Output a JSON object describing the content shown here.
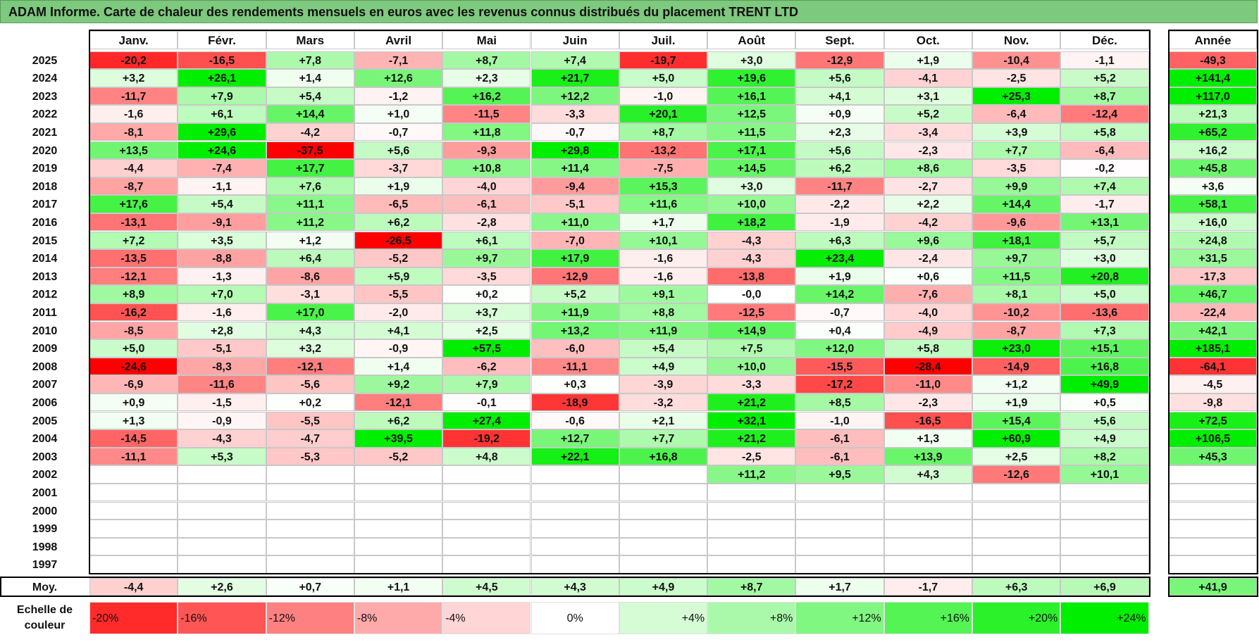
{
  "title": "ADAM Informe. Carte de chaleur des rendements mensuels en euros avec les revenus connus distribués du placement TRENT LTD",
  "chart_data": {
    "type": "heatmap",
    "months": [
      "Janv.",
      "Févr.",
      "Mars",
      "Avril",
      "Mai",
      "Juin",
      "Juil.",
      "Août",
      "Sept.",
      "Oct.",
      "Nov.",
      "Déc."
    ],
    "year_header": "Année",
    "rows": [
      {
        "year": "2025",
        "values": [
          "-20,2",
          "-16,5",
          "+7,8",
          "-7,1",
          "+8,7",
          "+7,4",
          "-19,7",
          "+3,0",
          "-12,9",
          "+1,9",
          "-10,4",
          "-1,1"
        ],
        "annual": "-49,3"
      },
      {
        "year": "2024",
        "values": [
          "+3,2",
          "+26,1",
          "+1,4",
          "+12,6",
          "+2,3",
          "+21,7",
          "+5,0",
          "+19,6",
          "+5,6",
          "-4,1",
          "-2,5",
          "+5,2"
        ],
        "annual": "+141,4"
      },
      {
        "year": "2023",
        "values": [
          "-11,7",
          "+7,9",
          "+5,4",
          "-1,2",
          "+16,2",
          "+12,2",
          "-1,0",
          "+16,1",
          "+4,1",
          "+3,1",
          "+25,3",
          "+8,7"
        ],
        "annual": "+117,0"
      },
      {
        "year": "2022",
        "values": [
          "-1,6",
          "+6,1",
          "+14,4",
          "+1,0",
          "-11,5",
          "-3,3",
          "+20,1",
          "+12,5",
          "+0,9",
          "+5,2",
          "-6,4",
          "-12,4"
        ],
        "annual": "+21,3"
      },
      {
        "year": "2021",
        "values": [
          "-8,1",
          "+29,6",
          "-4,2",
          "-0,7",
          "+11,8",
          "-0,7",
          "+8,7",
          "+11,5",
          "+2,3",
          "-3,4",
          "+3,9",
          "+5,8"
        ],
        "annual": "+65,2"
      },
      {
        "year": "2020",
        "values": [
          "+13,5",
          "+24,6",
          "-37,5",
          "+5,6",
          "-9,3",
          "+29,8",
          "-13,2",
          "+17,1",
          "+5,6",
          "-2,3",
          "+7,7",
          "-6,4"
        ],
        "annual": "+16,2"
      },
      {
        "year": "2019",
        "values": [
          "-4,4",
          "-7,4",
          "+17,7",
          "-3,7",
          "+10,8",
          "+11,4",
          "-7,5",
          "+14,5",
          "+6,2",
          "+8,6",
          "-3,5",
          "-0,2"
        ],
        "annual": "+45,8"
      },
      {
        "year": "2018",
        "values": [
          "-8,7",
          "-1,1",
          "+7,6",
          "+1,9",
          "-4,0",
          "-9,4",
          "+15,3",
          "+3,0",
          "-11,7",
          "-2,7",
          "+9,9",
          "+7,4"
        ],
        "annual": "+3,6"
      },
      {
        "year": "2017",
        "values": [
          "+17,6",
          "+5,4",
          "+11,1",
          "-6,5",
          "-6,1",
          "-5,1",
          "+11,6",
          "+10,0",
          "-2,2",
          "+2,2",
          "+14,4",
          "-1,7"
        ],
        "annual": "+58,1"
      },
      {
        "year": "2016",
        "values": [
          "-13,1",
          "-9,1",
          "+11,2",
          "+6,2",
          "-2,8",
          "+11,0",
          "+1,7",
          "+18,2",
          "-1,9",
          "-4,2",
          "-9,6",
          "+13,1"
        ],
        "annual": "+16,0"
      },
      {
        "year": "2015",
        "values": [
          "+7,2",
          "+3,5",
          "+1,2",
          "-26,5",
          "+6,1",
          "-7,0",
          "+10,1",
          "-4,3",
          "+6,3",
          "+9,6",
          "+18,1",
          "+5,7"
        ],
        "annual": "+24,8"
      },
      {
        "year": "2014",
        "values": [
          "-13,5",
          "-8,8",
          "+6,4",
          "-5,2",
          "+9,7",
          "+17,9",
          "-1,6",
          "-4,3",
          "+23,4",
          "-2,4",
          "+9,7",
          "+3,0"
        ],
        "annual": "+31,5"
      },
      {
        "year": "2013",
        "values": [
          "-12,1",
          "-1,3",
          "-8,6",
          "+5,9",
          "-3,5",
          "-12,9",
          "-1,6",
          "-13,8",
          "+1,9",
          "+0,6",
          "+11,5",
          "+20,8"
        ],
        "annual": "-17,3"
      },
      {
        "year": "2012",
        "values": [
          "+8,9",
          "+7,0",
          "-3,1",
          "-5,5",
          "+0,2",
          "+5,2",
          "+9,1",
          "-0,0",
          "+14,2",
          "-7,6",
          "+8,1",
          "+5,0"
        ],
        "annual": "+46,7"
      },
      {
        "year": "2011",
        "values": [
          "-16,2",
          "-1,6",
          "+17,0",
          "-2,0",
          "+3,7",
          "+11,9",
          "+8,8",
          "-12,5",
          "-0,7",
          "-4,0",
          "-10,2",
          "-13,6"
        ],
        "annual": "-22,4"
      },
      {
        "year": "2010",
        "values": [
          "-8,5",
          "+2,8",
          "+4,3",
          "+4,1",
          "+2,5",
          "+13,2",
          "+11,9",
          "+14,9",
          "+0,4",
          "-4,9",
          "-8,7",
          "+7,3"
        ],
        "annual": "+42,1"
      },
      {
        "year": "2009",
        "values": [
          "+5,0",
          "-5,1",
          "+3,2",
          "-0,9",
          "+57,5",
          "-6,0",
          "+5,4",
          "+7,5",
          "+12,0",
          "+5,8",
          "+23,0",
          "+15,1"
        ],
        "annual": "+185,1"
      },
      {
        "year": "2008",
        "values": [
          "-24,6",
          "-8,3",
          "-12,1",
          "+1,4",
          "-6,2",
          "-11,1",
          "+4,9",
          "+10,0",
          "-15,5",
          "-28,4",
          "-14,9",
          "+16,8"
        ],
        "annual": "-64,1"
      },
      {
        "year": "2007",
        "values": [
          "-6,9",
          "-11,6",
          "-5,6",
          "+9,2",
          "+7,9",
          "+0,3",
          "-3,9",
          "-3,3",
          "-17,2",
          "-11,0",
          "+1,2",
          "+49,9"
        ],
        "annual": "-4,5"
      },
      {
        "year": "2006",
        "values": [
          "+0,9",
          "-1,5",
          "+0,2",
          "-12,1",
          "-0,1",
          "-18,9",
          "-3,2",
          "+21,2",
          "+8,5",
          "-2,3",
          "+1,9",
          "+0,5"
        ],
        "annual": "-9,8"
      },
      {
        "year": "2005",
        "values": [
          "+1,3",
          "-0,9",
          "-5,5",
          "+6,2",
          "+27,4",
          "-0,6",
          "+2,1",
          "+32,1",
          "-1,0",
          "-16,5",
          "+15,4",
          "+5,6"
        ],
        "annual": "+72,5"
      },
      {
        "year": "2004",
        "values": [
          "-14,5",
          "-4,3",
          "-4,7",
          "+39,5",
          "-19,2",
          "+12,7",
          "+7,7",
          "+21,2",
          "-6,1",
          "+1,3",
          "+60,9",
          "+4,9"
        ],
        "annual": "+106,5"
      },
      {
        "year": "2003",
        "values": [
          "-11,1",
          "+5,3",
          "-5,3",
          "-5,2",
          "+4,8",
          "+22,1",
          "+16,8",
          "-2,5",
          "-6,1",
          "+13,9",
          "+2,5",
          "+8,2"
        ],
        "annual": "+45,3"
      },
      {
        "year": "2002",
        "values": [
          "",
          "",
          "",
          "",
          "",
          "",
          "",
          "+11,2",
          "+9,5",
          "+4,3",
          "-12,6",
          "+10,1"
        ],
        "annual": ""
      },
      {
        "year": "2001",
        "values": [
          "",
          "",
          "",
          "",
          "",
          "",
          "",
          "",
          "",
          "",
          "",
          ""
        ],
        "annual": ""
      },
      {
        "year": "2000",
        "values": [
          "",
          "",
          "",
          "",
          "",
          "",
          "",
          "",
          "",
          "",
          "",
          ""
        ],
        "annual": ""
      },
      {
        "year": "1999",
        "values": [
          "",
          "",
          "",
          "",
          "",
          "",
          "",
          "",
          "",
          "",
          "",
          ""
        ],
        "annual": ""
      },
      {
        "year": "1998",
        "values": [
          "",
          "",
          "",
          "",
          "",
          "",
          "",
          "",
          "",
          "",
          "",
          ""
        ],
        "annual": ""
      },
      {
        "year": "1997",
        "values": [
          "",
          "",
          "",
          "",
          "",
          "",
          "",
          "",
          "",
          "",
          "",
          ""
        ],
        "annual": ""
      }
    ],
    "average": {
      "label": "Moy.",
      "values": [
        "-4,4",
        "+2,6",
        "+0,7",
        "+1,1",
        "+4,5",
        "+4,3",
        "+4,9",
        "+8,7",
        "+1,7",
        "-1,7",
        "+6,3",
        "+6,9"
      ],
      "annual": "+41,9"
    },
    "scale": {
      "label": "Echelle de couleur",
      "steps": [
        "-20%",
        "-16%",
        "-12%",
        "-8%",
        "-4%",
        "0%",
        "+4%",
        "+8%",
        "+12%",
        "+16%",
        "+20%",
        "+24%"
      ]
    },
    "colors": {
      "strong_negative": "#ff0000",
      "neutral": "#ffffff",
      "strong_positive": "#00ee00",
      "title_background": "#7dc97d"
    }
  }
}
